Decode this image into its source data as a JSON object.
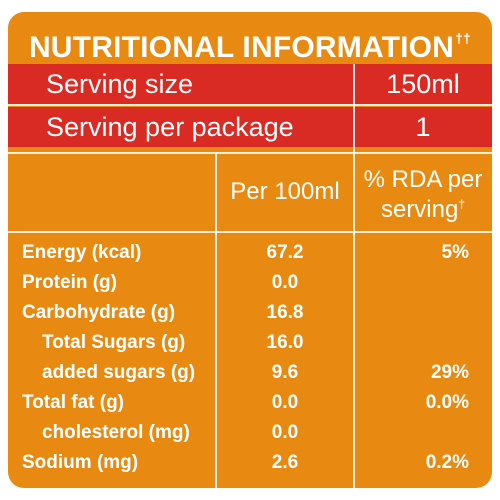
{
  "title": "NUTRITIONAL INFORMATION",
  "title_mark": "††",
  "serving_size": {
    "label": "Serving size",
    "value": "150ml"
  },
  "serving_per_package": {
    "label": "Serving per package",
    "value": "1"
  },
  "columns": {
    "per100": "Per 100ml",
    "rda_line1": "% RDA per",
    "rda_line2": "serving",
    "rda_mark": "†"
  },
  "rows": [
    {
      "name": "Energy (kcal)",
      "per100": "67.2",
      "rda": "5%"
    },
    {
      "name": "Protein (g)",
      "per100": "0.0",
      "rda": ""
    },
    {
      "name": "Carbohydrate (g)",
      "per100": "16.8",
      "rda": ""
    },
    {
      "name": "Total Sugars (g)",
      "per100": "16.0",
      "rda": ""
    },
    {
      "name": "added sugars (g)",
      "per100": "9.6",
      "rda": "29%"
    },
    {
      "name": "Total fat (g)",
      "per100": "0.0",
      "rda": "0.0%"
    },
    {
      "name": "cholesterol (mg)",
      "per100": "0.0",
      "rda": ""
    },
    {
      "name": "Sodium (mg)",
      "per100": "2.6",
      "rda": "0.2%"
    }
  ],
  "colors": {
    "panel": "#e88a12",
    "header_band": "#d92a24",
    "text": "#ffffff"
  }
}
